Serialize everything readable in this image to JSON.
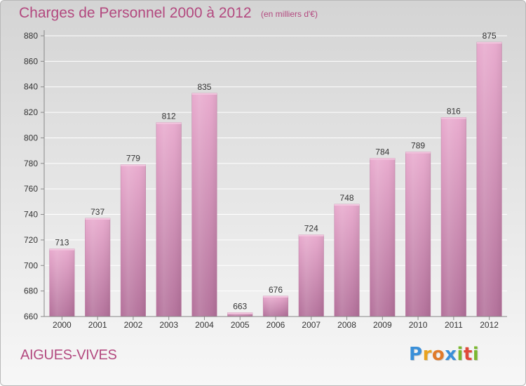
{
  "header": {
    "title": "Charges de Personnel 2000 à 2012",
    "unit_note": "(en milliers d'€)"
  },
  "footer": {
    "commune": "AIGUES-VIVES",
    "logo_letters": [
      {
        "char": "P",
        "color": "#3a8fd8"
      },
      {
        "char": "r",
        "color": "#e8a21f"
      },
      {
        "char": "o",
        "color": "#e07a2a"
      },
      {
        "char": "x",
        "color": "#3a8fd8"
      },
      {
        "char": "i",
        "color": "#7ab82e"
      },
      {
        "char": "t",
        "color": "#e04a3a"
      },
      {
        "char": "i",
        "color": "#7ab82e"
      }
    ]
  },
  "colors": {
    "accent": "#b3497f",
    "bar_top": "#e8a9cd",
    "bar_bottom": "#b26f99",
    "grid": "#ffffff",
    "axis": "#888888",
    "text": "#333333"
  },
  "chart_data": {
    "type": "bar",
    "title": "Charges de Personnel 2000 à 2012",
    "subtitle": "(en milliers d'€)",
    "xlabel": "",
    "ylabel": "",
    "categories": [
      "2000",
      "2001",
      "2002",
      "2003",
      "2004",
      "2005",
      "2006",
      "2007",
      "2008",
      "2009",
      "2010",
      "2011",
      "2012"
    ],
    "values": [
      713,
      737,
      779,
      812,
      835,
      663,
      676,
      724,
      748,
      784,
      789,
      816,
      875
    ],
    "data_labels": [
      "713",
      "737",
      "779",
      "812",
      "835",
      "663",
      "676",
      "724",
      "748",
      "784",
      "789",
      "816",
      "875"
    ],
    "ylim": [
      660,
      880
    ],
    "yticks": [
      660,
      680,
      700,
      720,
      740,
      760,
      780,
      800,
      820,
      840,
      860,
      880
    ],
    "grid": true,
    "legend": "none"
  }
}
